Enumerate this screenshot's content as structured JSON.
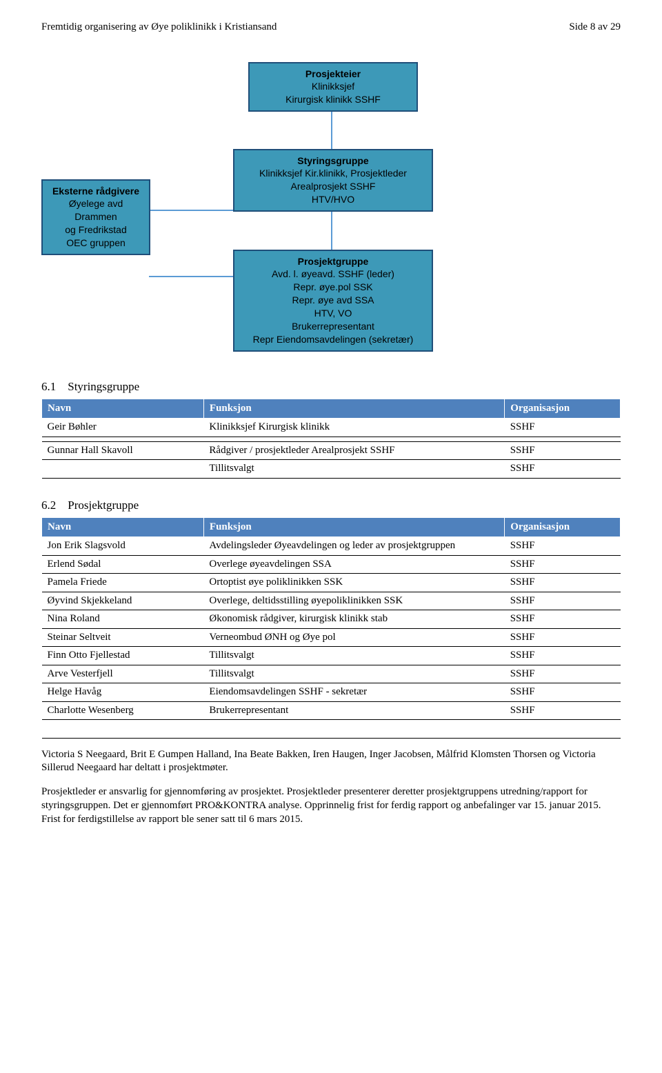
{
  "header": {
    "left": "Fremtidig organisering av Øye poliklinikk i Kristiansand",
    "right": "Side 8 av 29"
  },
  "org": {
    "top": {
      "title": "Prosjekteier",
      "line1": "Klinikksjef",
      "line2": "Kirurgisk klinikk SSHF"
    },
    "left": {
      "title": "Eksterne rådgivere",
      "line1": "Øyelege avd",
      "line2": "Drammen",
      "line3": "og Fredrikstad",
      "line4": "OEC gruppen"
    },
    "midTop": {
      "title": "Styringsgruppe",
      "line1": "Klinikksjef Kir.klinikk, Prosjektleder",
      "line2": "Arealprosjekt SSHF",
      "line3": "HTV/HVO"
    },
    "midBottom": {
      "title": "Prosjektgruppe",
      "line1": "Avd. l. øyeavd. SSHF (leder)",
      "line2": "Repr. øye.pol SSK",
      "line3": "Repr. øye avd SSA",
      "line4": "HTV, VO",
      "line5": "Brukerrepresentant",
      "line6": "Repr Eiendomsavdelingen (sekretær)"
    }
  },
  "section61": {
    "num": "6.1",
    "title": "Styringsgruppe",
    "columns": [
      "Navn",
      "Funksjon",
      "Organisasjon"
    ],
    "rows": [
      [
        "Geir Bøhler",
        "Klinikksjef Kirurgisk klinikk",
        "SSHF"
      ],
      [
        "",
        "",
        ""
      ],
      [
        "Gunnar Hall Skavoll",
        "Rådgiver / prosjektleder Arealprosjekt SSHF",
        "SSHF"
      ],
      [
        "",
        "Tillitsvalgt",
        "SSHF"
      ]
    ]
  },
  "section62": {
    "num": "6.2",
    "title": "Prosjektgruppe",
    "columns": [
      "Navn",
      "Funksjon",
      "Organisasjon"
    ],
    "rows": [
      [
        "Jon Erik Slagsvold",
        "Avdelingsleder Øyeavdelingen og leder av prosjektgruppen",
        "SSHF"
      ],
      [
        "Erlend Sødal",
        "Overlege øyeavdelingen SSA",
        "SSHF"
      ],
      [
        "Pamela Friede",
        "Ortoptist øye poliklinikken SSK",
        "SSHF"
      ],
      [
        "Øyvind Skjekkeland",
        "Overlege, deltidsstilling øyepoliklinikken SSK",
        "SSHF"
      ],
      [
        "Nina Roland",
        "Økonomisk rådgiver, kirurgisk klinikk stab",
        "SSHF"
      ],
      [
        "Steinar Seltveit",
        "Verneombud ØNH og Øye pol",
        "SSHF"
      ],
      [
        "Finn Otto Fjellestad",
        "Tillitsvalgt",
        "SSHF"
      ],
      [
        "Arve Vesterfjell",
        "Tillitsvalgt",
        "SSHF"
      ],
      [
        "Helge Havåg",
        "Eiendomsavdelingen SSHF - sekretær",
        "SSHF"
      ],
      [
        "Charlotte Wesenberg",
        "Brukerrepresentant",
        "SSHF"
      ]
    ],
    "footnote": "Victoria S Neegaard, Brit E Gumpen Halland, Ina Beate Bakken, Iren Haugen, Inger Jacobsen, Målfrid Klomsten Thorsen og Victoria Sillerud Neegaard har deltatt i prosjektmøter."
  },
  "bodyText": "Prosjektleder er ansvarlig for gjennomføring av prosjektet. Prosjektleder presenterer deretter prosjektgruppens utredning/rapport for styringsgruppen. Det er gjennomført PRO&KONTRA analyse. Opprinnelig frist for ferdig rapport og anbefalinger var 15. januar 2015. Frist for ferdigstillelse av rapport ble sener satt til 6 mars 2015.",
  "style": {
    "boxFill": "#3d99b8",
    "boxBorder": "#1f4e79",
    "tableHeaderBg": "#4f81bd",
    "tableHeaderColor": "#ffffff",
    "lineColor": "#5b9bd5"
  }
}
